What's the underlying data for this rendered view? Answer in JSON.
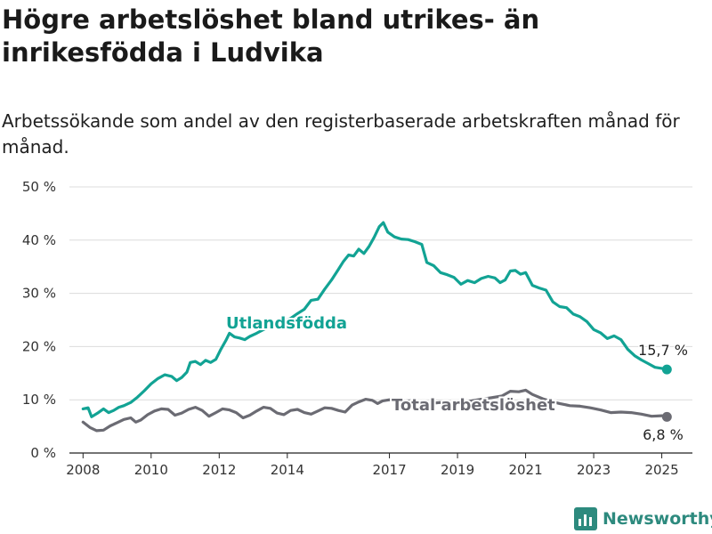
{
  "title": "Högre arbetslöshet bland utrikes- än inrikesfödda i Ludvika",
  "subtitle": "Arbetssökande som andel av den registerbaserade arbetskraften månad för månad.",
  "brand": "Newsworthy",
  "chart_data": {
    "type": "line",
    "title": "Högre arbetslöshet bland utrikes- än inrikesfödda i Ludvika",
    "subtitle": "Arbetssökande som andel av den registerbaserade arbetskraften månad för månad.",
    "xlabel": "",
    "ylabel": "",
    "xlim": [
      2007.6,
      2025.9
    ],
    "ylim": [
      0,
      50
    ],
    "x_ticks": [
      2008,
      2010,
      2012,
      2014,
      2017,
      2019,
      2021,
      2023,
      2025
    ],
    "x_tick_labels": [
      "2008",
      "2010",
      "2012",
      "2014",
      "2017",
      "2019",
      "2021",
      "2023",
      "2025"
    ],
    "y_ticks": [
      0,
      10,
      20,
      30,
      40,
      50
    ],
    "y_tick_labels": [
      "0 %",
      "10 %",
      "20 %",
      "30 %",
      "40 %",
      "50 %"
    ],
    "grid": true,
    "series": [
      {
        "name": "Utlandsfödda",
        "color": "#12a394",
        "end_label": "15,7 %",
        "points": [
          [
            2008.0,
            8.3
          ],
          [
            2008.15,
            8.5
          ],
          [
            2008.25,
            6.8
          ],
          [
            2008.45,
            7.6
          ],
          [
            2008.6,
            8.3
          ],
          [
            2008.75,
            7.6
          ],
          [
            2008.9,
            8.0
          ],
          [
            2009.05,
            8.6
          ],
          [
            2009.2,
            8.9
          ],
          [
            2009.4,
            9.5
          ],
          [
            2009.6,
            10.5
          ],
          [
            2009.8,
            11.7
          ],
          [
            2010.0,
            13.0
          ],
          [
            2010.2,
            14.0
          ],
          [
            2010.4,
            14.7
          ],
          [
            2010.6,
            14.4
          ],
          [
            2010.75,
            13.6
          ],
          [
            2010.9,
            14.2
          ],
          [
            2011.05,
            15.2
          ],
          [
            2011.15,
            17.0
          ],
          [
            2011.3,
            17.2
          ],
          [
            2011.45,
            16.6
          ],
          [
            2011.6,
            17.4
          ],
          [
            2011.75,
            17.0
          ],
          [
            2011.9,
            17.6
          ],
          [
            2012.05,
            19.5
          ],
          [
            2012.2,
            21.2
          ],
          [
            2012.3,
            22.5
          ],
          [
            2012.45,
            21.8
          ],
          [
            2012.6,
            21.6
          ],
          [
            2012.75,
            21.3
          ],
          [
            2012.9,
            21.9
          ],
          [
            2013.1,
            22.5
          ],
          [
            2013.3,
            23.2
          ],
          [
            2013.5,
            23.7
          ],
          [
            2013.7,
            24.2
          ],
          [
            2013.9,
            24.7
          ],
          [
            2014.1,
            25.3
          ],
          [
            2014.3,
            26.2
          ],
          [
            2014.5,
            27.0
          ],
          [
            2014.7,
            28.7
          ],
          [
            2014.9,
            28.9
          ],
          [
            2015.1,
            30.8
          ],
          [
            2015.3,
            32.5
          ],
          [
            2015.5,
            34.5
          ],
          [
            2015.65,
            36.0
          ],
          [
            2015.8,
            37.2
          ],
          [
            2015.95,
            37.0
          ],
          [
            2016.1,
            38.3
          ],
          [
            2016.25,
            37.5
          ],
          [
            2016.4,
            38.8
          ],
          [
            2016.55,
            40.5
          ],
          [
            2016.7,
            42.5
          ],
          [
            2016.82,
            43.3
          ],
          [
            2016.95,
            41.5
          ],
          [
            2017.15,
            40.6
          ],
          [
            2017.35,
            40.2
          ],
          [
            2017.55,
            40.1
          ],
          [
            2017.75,
            39.7
          ],
          [
            2017.95,
            39.2
          ],
          [
            2018.1,
            35.8
          ],
          [
            2018.3,
            35.2
          ],
          [
            2018.5,
            33.9
          ],
          [
            2018.7,
            33.5
          ],
          [
            2018.9,
            33.0
          ],
          [
            2019.1,
            31.7
          ],
          [
            2019.3,
            32.4
          ],
          [
            2019.5,
            32.0
          ],
          [
            2019.7,
            32.8
          ],
          [
            2019.9,
            33.2
          ],
          [
            2020.1,
            32.9
          ],
          [
            2020.25,
            32.0
          ],
          [
            2020.4,
            32.5
          ],
          [
            2020.55,
            34.2
          ],
          [
            2020.7,
            34.3
          ],
          [
            2020.85,
            33.6
          ],
          [
            2021.0,
            33.9
          ],
          [
            2021.2,
            31.5
          ],
          [
            2021.4,
            31.0
          ],
          [
            2021.6,
            30.6
          ],
          [
            2021.8,
            28.4
          ],
          [
            2022.0,
            27.5
          ],
          [
            2022.2,
            27.3
          ],
          [
            2022.4,
            26.1
          ],
          [
            2022.6,
            25.6
          ],
          [
            2022.8,
            24.7
          ],
          [
            2023.0,
            23.2
          ],
          [
            2023.2,
            22.6
          ],
          [
            2023.4,
            21.5
          ],
          [
            2023.6,
            22.0
          ],
          [
            2023.8,
            21.3
          ],
          [
            2024.0,
            19.5
          ],
          [
            2024.2,
            18.3
          ],
          [
            2024.4,
            17.5
          ],
          [
            2024.6,
            16.8
          ],
          [
            2024.8,
            16.1
          ],
          [
            2025.0,
            15.9
          ],
          [
            2025.15,
            15.7
          ]
        ]
      },
      {
        "name": "Total arbetslöshet",
        "color": "#6b6b73",
        "end_label": "6,8 %",
        "points": [
          [
            2008.0,
            5.8
          ],
          [
            2008.2,
            4.8
          ],
          [
            2008.4,
            4.2
          ],
          [
            2008.6,
            4.3
          ],
          [
            2008.8,
            5.1
          ],
          [
            2009.0,
            5.7
          ],
          [
            2009.2,
            6.3
          ],
          [
            2009.4,
            6.6
          ],
          [
            2009.55,
            5.8
          ],
          [
            2009.7,
            6.2
          ],
          [
            2009.9,
            7.2
          ],
          [
            2010.1,
            7.9
          ],
          [
            2010.3,
            8.3
          ],
          [
            2010.5,
            8.2
          ],
          [
            2010.7,
            7.1
          ],
          [
            2010.9,
            7.5
          ],
          [
            2011.1,
            8.2
          ],
          [
            2011.3,
            8.6
          ],
          [
            2011.5,
            8.0
          ],
          [
            2011.7,
            6.9
          ],
          [
            2011.9,
            7.6
          ],
          [
            2012.1,
            8.3
          ],
          [
            2012.3,
            8.1
          ],
          [
            2012.5,
            7.6
          ],
          [
            2012.7,
            6.6
          ],
          [
            2012.9,
            7.1
          ],
          [
            2013.1,
            7.9
          ],
          [
            2013.3,
            8.6
          ],
          [
            2013.5,
            8.4
          ],
          [
            2013.7,
            7.5
          ],
          [
            2013.9,
            7.2
          ],
          [
            2014.1,
            8.0
          ],
          [
            2014.3,
            8.2
          ],
          [
            2014.5,
            7.6
          ],
          [
            2014.7,
            7.3
          ],
          [
            2014.9,
            7.9
          ],
          [
            2015.1,
            8.5
          ],
          [
            2015.3,
            8.4
          ],
          [
            2015.5,
            8.0
          ],
          [
            2015.7,
            7.7
          ],
          [
            2015.9,
            9.0
          ],
          [
            2016.1,
            9.6
          ],
          [
            2016.3,
            10.1
          ],
          [
            2016.5,
            9.9
          ],
          [
            2016.65,
            9.3
          ],
          [
            2016.8,
            9.8
          ],
          [
            2017.0,
            10.0
          ],
          [
            2017.3,
            9.7
          ],
          [
            2017.6,
            9.8
          ],
          [
            2017.9,
            9.6
          ],
          [
            2018.2,
            9.3
          ],
          [
            2018.5,
            9.5
          ],
          [
            2018.8,
            9.3
          ],
          [
            2019.1,
            9.5
          ],
          [
            2019.4,
            9.8
          ],
          [
            2019.7,
            10.1
          ],
          [
            2020.0,
            10.4
          ],
          [
            2020.3,
            10.7
          ],
          [
            2020.55,
            11.6
          ],
          [
            2020.8,
            11.5
          ],
          [
            2021.0,
            11.8
          ],
          [
            2021.2,
            11.0
          ],
          [
            2021.5,
            10.2
          ],
          [
            2021.8,
            9.6
          ],
          [
            2022.0,
            9.3
          ],
          [
            2022.3,
            8.9
          ],
          [
            2022.6,
            8.8
          ],
          [
            2022.9,
            8.5
          ],
          [
            2023.2,
            8.1
          ],
          [
            2023.5,
            7.6
          ],
          [
            2023.8,
            7.7
          ],
          [
            2024.1,
            7.6
          ],
          [
            2024.4,
            7.3
          ],
          [
            2024.7,
            6.9
          ],
          [
            2025.0,
            7.0
          ],
          [
            2025.15,
            6.8
          ]
        ]
      }
    ],
    "annotations": [
      {
        "text": "Utlandsfödda",
        "series": "Utlandsfödda"
      },
      {
        "text": "Total arbetslöshet",
        "series": "Total arbetslöshet"
      }
    ]
  }
}
